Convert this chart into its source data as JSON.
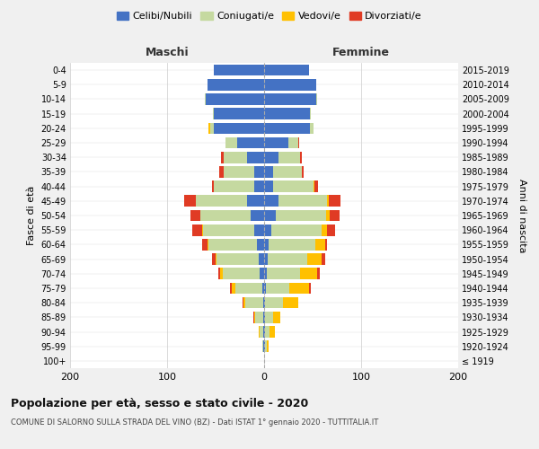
{
  "age_groups": [
    "100+",
    "95-99",
    "90-94",
    "85-89",
    "80-84",
    "75-79",
    "70-74",
    "65-69",
    "60-64",
    "55-59",
    "50-54",
    "45-49",
    "40-44",
    "35-39",
    "30-34",
    "25-29",
    "20-24",
    "15-19",
    "10-14",
    "5-9",
    "0-4"
  ],
  "birth_years": [
    "≤ 1919",
    "1920-1924",
    "1925-1929",
    "1930-1934",
    "1935-1939",
    "1940-1944",
    "1945-1949",
    "1950-1954",
    "1955-1959",
    "1960-1964",
    "1965-1969",
    "1970-1974",
    "1975-1979",
    "1980-1984",
    "1985-1989",
    "1990-1994",
    "1995-1999",
    "2000-2004",
    "2005-2009",
    "2010-2014",
    "2015-2019"
  ],
  "male": {
    "celibi": [
      0,
      1,
      1,
      1,
      1,
      2,
      5,
      6,
      7,
      10,
      14,
      18,
      10,
      10,
      18,
      28,
      52,
      52,
      60,
      58,
      52
    ],
    "coniugati": [
      0,
      1,
      4,
      8,
      18,
      28,
      38,
      43,
      50,
      53,
      52,
      52,
      42,
      32,
      24,
      12,
      4,
      1,
      1,
      0,
      0
    ],
    "vedovi": [
      0,
      0,
      1,
      1,
      2,
      3,
      2,
      1,
      1,
      1,
      0,
      0,
      0,
      0,
      0,
      0,
      1,
      0,
      0,
      0,
      0
    ],
    "divorziati": [
      0,
      0,
      0,
      1,
      1,
      2,
      2,
      4,
      6,
      10,
      10,
      12,
      2,
      4,
      2,
      0,
      0,
      0,
      0,
      0,
      0
    ]
  },
  "female": {
    "nubili": [
      0,
      1,
      1,
      1,
      1,
      2,
      3,
      4,
      5,
      7,
      12,
      15,
      9,
      9,
      15,
      25,
      47,
      47,
      54,
      54,
      46
    ],
    "coniugate": [
      0,
      2,
      5,
      8,
      18,
      24,
      34,
      40,
      48,
      52,
      52,
      50,
      42,
      30,
      22,
      10,
      4,
      1,
      1,
      0,
      0
    ],
    "vedove": [
      0,
      2,
      5,
      8,
      16,
      20,
      18,
      15,
      10,
      6,
      4,
      2,
      1,
      0,
      0,
      0,
      0,
      0,
      0,
      0,
      0
    ],
    "divorziate": [
      0,
      0,
      0,
      0,
      0,
      2,
      2,
      4,
      2,
      8,
      10,
      12,
      4,
      2,
      2,
      1,
      0,
      0,
      0,
      0,
      0
    ]
  },
  "colors": {
    "celibi": "#4472c4",
    "coniugati": "#c5d9a0",
    "vedovi": "#ffc000",
    "divorziati": "#e03b24"
  },
  "xlim": 200,
  "title": "Popolazione per età, sesso e stato civile - 2020",
  "subtitle": "COMUNE DI SALORNO SULLA STRADA DEL VINO (BZ) - Dati ISTAT 1° gennaio 2020 - TUTTITALIA.IT",
  "ylabel_left": "Fasce di età",
  "ylabel_right": "Anni di nascita",
  "legend_labels": [
    "Celibi/Nubili",
    "Coniugati/e",
    "Vedovi/e",
    "Divorziati/e"
  ],
  "maschi_label": "Maschi",
  "femmine_label": "Femmine",
  "background_color": "#f0f0f0",
  "plot_bg_color": "#ffffff"
}
